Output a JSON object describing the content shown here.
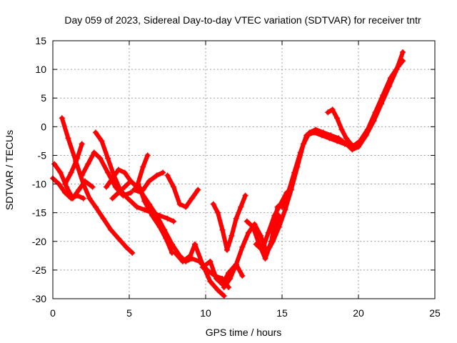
{
  "chart_data": {
    "type": "scatter",
    "title": "Day 059 of 2023, Sidereal Day-to-day VTEC variation (SDTVAR) for receiver tntr",
    "xlabel": "GPS time / hours",
    "ylabel": "SDTVAR / TECUs",
    "xlim": [
      0,
      25
    ],
    "ylim": [
      -30,
      15
    ],
    "xticks": [
      "0",
      "5",
      "10",
      "15",
      "20",
      "25"
    ],
    "yticks": [
      "-30",
      "-25",
      "-20",
      "-15",
      "-10",
      "-5",
      "0",
      "5",
      "10",
      "15"
    ],
    "grid": true,
    "marker": "+",
    "color": "#ff0000",
    "series": [
      {
        "x": [
          0.6,
          1.0,
          1.5,
          2.0,
          2.4,
          2.8,
          3.3,
          3.8,
          4.3,
          4.8,
          5.2
        ],
        "y": [
          1.5,
          -2.0,
          -6.0,
          -10.0,
          -12.5,
          -14.0,
          -16.0,
          -18.0,
          -19.5,
          -21.0,
          -22.0
        ]
      },
      {
        "x": [
          0.1,
          0.5,
          0.9,
          1.3,
          1.7,
          2.1,
          2.6
        ],
        "y": [
          -6.5,
          -8.0,
          -10.5,
          -12.5,
          -11.0,
          -9.5,
          -10.5
        ]
      },
      {
        "x": [
          0.0,
          0.4,
          0.8,
          1.2,
          1.6,
          2.0
        ],
        "y": [
          -9.0,
          -10.0,
          -11.5,
          -12.5,
          -12.0,
          -12.5
        ]
      },
      {
        "x": [
          0.8,
          1.2,
          1.6,
          1.9
        ],
        "y": [
          -10.0,
          -8.0,
          -5.5,
          -3.0
        ]
      },
      {
        "x": [
          1.9,
          2.3,
          2.7,
          3.1,
          3.6,
          4.1,
          4.6,
          5.1
        ],
        "y": [
          -8.5,
          -6.5,
          -4.5,
          -5.5,
          -8.0,
          -10.5,
          -12.0,
          -11.5
        ]
      },
      {
        "x": [
          2.8,
          3.2,
          3.6,
          4.0,
          4.4,
          4.9,
          5.5,
          6.0,
          6.5,
          7.0,
          7.5,
          7.9
        ],
        "y": [
          -1.0,
          -2.5,
          -5.5,
          -8.5,
          -11.0,
          -12.5,
          -14.0,
          -14.5,
          -15.0,
          -15.5,
          -16.0,
          -16.5
        ]
      },
      {
        "x": [
          3.5,
          3.9,
          4.3,
          4.7,
          5.1,
          5.5,
          5.9,
          6.2
        ],
        "y": [
          -10.5,
          -9.0,
          -7.5,
          -8.0,
          -9.5,
          -10.5,
          -7.0,
          -5.0
        ]
      },
      {
        "x": [
          3.9,
          4.3,
          4.7,
          5.1,
          5.5,
          5.9,
          6.3,
          6.8,
          7.2
        ],
        "y": [
          -12.5,
          -11.5,
          -10.5,
          -9.5,
          -10.5,
          -11.0,
          -9.5,
          -8.5,
          -8.0
        ]
      },
      {
        "x": [
          5.6,
          6.0,
          6.5,
          7.0,
          7.4,
          7.8
        ],
        "y": [
          -10.0,
          -13.0,
          -15.5,
          -17.5,
          -19.5,
          -22.0
        ]
      },
      {
        "x": [
          5.3,
          5.8,
          6.3,
          6.8,
          7.3,
          7.8,
          8.3,
          8.7,
          9.1,
          9.6,
          10.1,
          10.6,
          11.1,
          11.5
        ],
        "y": [
          -11.0,
          -11.5,
          -13.5,
          -15.5,
          -18.0,
          -20.5,
          -22.5,
          -23.5,
          -23.0,
          -23.5,
          -25.0,
          -26.0,
          -26.5,
          -28.0
        ]
      },
      {
        "x": [
          7.5,
          7.9,
          8.3,
          8.7,
          9.1,
          9.5
        ],
        "y": [
          -8.5,
          -10.5,
          -13.5,
          -14.0,
          -12.5,
          -11.0
        ]
      },
      {
        "x": [
          8.0,
          8.5,
          9.0,
          9.3,
          9.8,
          10.3,
          10.8,
          11.2
        ],
        "y": [
          -22.0,
          -23.5,
          -22.5,
          -20.5,
          -24.0,
          -27.0,
          -28.5,
          -29.5
        ]
      },
      {
        "x": [
          9.8,
          10.3,
          10.7,
          11.1,
          11.5,
          12.0,
          12.4
        ],
        "y": [
          -24.5,
          -23.5,
          -26.5,
          -27.5,
          -25.5,
          -24.0,
          -26.0
        ]
      },
      {
        "x": [
          10.5,
          10.8,
          11.1,
          11.4,
          11.7,
          12.0,
          12.3,
          12.6
        ],
        "y": [
          -13.5,
          -15.0,
          -18.0,
          -21.5,
          -19.0,
          -16.0,
          -14.0,
          -12.0
        ]
      },
      {
        "x": [
          11.2,
          11.6,
          12.0,
          12.4,
          12.8,
          13.2,
          13.6,
          14.0,
          14.4,
          14.8
        ],
        "y": [
          -28.0,
          -26.5,
          -24.0,
          -21.0,
          -18.5,
          -17.0,
          -19.0,
          -22.0,
          -19.5,
          -15.5
        ]
      },
      {
        "x": [
          12.7,
          13.1,
          13.5,
          13.9,
          14.3,
          14.7
        ],
        "y": [
          -16.5,
          -17.5,
          -20.5,
          -23.0,
          -20.0,
          -14.0
        ]
      },
      {
        "x": [
          13.3,
          13.7,
          14.1,
          14.5,
          14.9,
          15.3
        ],
        "y": [
          -20.5,
          -21.5,
          -18.5,
          -15.5,
          -13.5,
          -11.5
        ]
      },
      {
        "x": [
          14.0,
          14.4,
          14.8,
          15.2,
          15.6,
          16.0,
          16.4,
          16.8,
          17.2,
          17.7,
          18.2,
          18.7,
          19.2,
          19.6,
          20.0,
          20.5,
          21.0,
          21.5,
          22.0,
          22.5,
          22.9
        ],
        "y": [
          -22.0,
          -20.0,
          -17.5,
          -14.5,
          -11.0,
          -7.0,
          -3.0,
          -1.0,
          -0.5,
          -1.0,
          -1.5,
          -2.0,
          -3.0,
          -4.0,
          -3.5,
          -1.5,
          1.0,
          4.0,
          7.0,
          10.0,
          13.0
        ]
      },
      {
        "x": [
          15.0,
          15.4,
          15.8,
          16.2,
          16.6,
          17.1,
          17.6,
          18.1,
          18.6,
          19.1,
          19.6,
          20.1,
          20.6,
          21.1,
          21.6,
          22.1,
          22.6,
          22.9
        ],
        "y": [
          -14.0,
          -11.5,
          -8.0,
          -4.5,
          -1.5,
          -1.0,
          -1.5,
          -2.0,
          -2.5,
          -3.0,
          -3.5,
          -2.5,
          -0.5,
          2.5,
          5.5,
          8.5,
          10.5,
          11.5
        ]
      },
      {
        "x": [
          18.0,
          18.3,
          18.6,
          18.9,
          19.2,
          19.5,
          19.8,
          20.1
        ],
        "y": [
          2.5,
          3.0,
          1.5,
          -0.5,
          -2.0,
          -3.0,
          -3.5,
          -3.0
        ]
      }
    ]
  }
}
